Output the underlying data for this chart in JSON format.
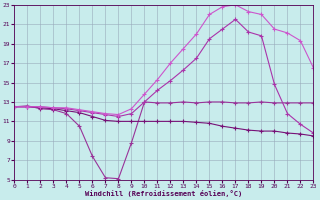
{
  "xlabel": "Windchill (Refroidissement éolien,°C)",
  "xlim": [
    0,
    23
  ],
  "ylim": [
    5,
    23
  ],
  "xticks": [
    0,
    1,
    2,
    3,
    4,
    5,
    6,
    7,
    8,
    9,
    10,
    11,
    12,
    13,
    14,
    15,
    16,
    17,
    18,
    19,
    20,
    21,
    22,
    23
  ],
  "yticks": [
    5,
    7,
    9,
    11,
    13,
    15,
    17,
    19,
    21,
    23
  ],
  "bg_color": "#c8ecec",
  "grid_color": "#99aabb",
  "series": [
    {
      "x": [
        0,
        1,
        2,
        3,
        4,
        5,
        6,
        7,
        8,
        9,
        10,
        11,
        12,
        13,
        14,
        15,
        16,
        17,
        18,
        19,
        20,
        21,
        22,
        23
      ],
      "y": [
        12.5,
        12.6,
        12.3,
        12.2,
        11.8,
        10.5,
        7.4,
        5.2,
        5.1,
        8.8,
        13.0,
        12.9,
        12.9,
        13.0,
        12.9,
        13.0,
        13.0,
        12.9,
        12.9,
        13.0,
        12.9,
        12.9,
        12.9,
        12.9
      ],
      "color": "#993399",
      "lw": 0.8
    },
    {
      "x": [
        0,
        1,
        2,
        3,
        4,
        5,
        6,
        7,
        8,
        9,
        10,
        11,
        12,
        13,
        14,
        15,
        16,
        17,
        18,
        19,
        20,
        21,
        22,
        23
      ],
      "y": [
        12.5,
        12.5,
        12.4,
        12.3,
        12.1,
        11.9,
        11.5,
        11.1,
        11.0,
        11.0,
        11.0,
        11.0,
        11.0,
        11.0,
        10.9,
        10.8,
        10.5,
        10.3,
        10.1,
        10.0,
        10.0,
        9.8,
        9.7,
        9.5
      ],
      "color": "#771177",
      "lw": 0.8
    },
    {
      "x": [
        0,
        1,
        2,
        3,
        4,
        5,
        6,
        7,
        8,
        9,
        10,
        11,
        12,
        13,
        14,
        15,
        16,
        17,
        18,
        19,
        20,
        21,
        22,
        23
      ],
      "y": [
        12.5,
        12.5,
        12.5,
        12.4,
        12.3,
        12.1,
        11.9,
        11.7,
        11.5,
        11.8,
        13.0,
        14.2,
        15.2,
        16.3,
        17.5,
        19.5,
        20.5,
        21.5,
        20.2,
        19.8,
        14.8,
        11.8,
        10.7,
        9.8
      ],
      "color": "#aa33aa",
      "lw": 0.8
    },
    {
      "x": [
        0,
        1,
        2,
        3,
        4,
        5,
        6,
        7,
        8,
        9,
        10,
        11,
        12,
        13,
        14,
        15,
        16,
        17,
        18,
        19,
        20,
        21,
        22,
        23
      ],
      "y": [
        12.5,
        12.5,
        12.5,
        12.4,
        12.4,
        12.2,
        12.0,
        11.8,
        11.7,
        12.3,
        13.8,
        15.3,
        17.0,
        18.5,
        20.0,
        22.0,
        22.8,
        23.0,
        22.3,
        22.0,
        20.5,
        20.1,
        19.3,
        16.5
      ],
      "color": "#cc55cc",
      "lw": 0.8
    }
  ]
}
